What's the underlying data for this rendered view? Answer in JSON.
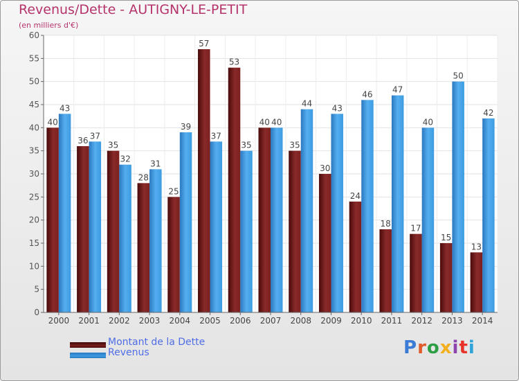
{
  "title": "Revenus/Dette - AUTIGNY-LE-PETIT",
  "subtitle": "(en milliers d'€)",
  "logo_text": "Proxiti",
  "logo_colors": [
    "#3a7bd5",
    "#e05a2a",
    "#2e9e44",
    "#f2b01e",
    "#8e44ad",
    "#e8332a",
    "#2fa3d9"
  ],
  "chart_data": {
    "type": "bar",
    "categories": [
      "2000",
      "2001",
      "2002",
      "2003",
      "2004",
      "2005",
      "2006",
      "2007",
      "2008",
      "2009",
      "2010",
      "2011",
      "2012",
      "2013",
      "2014"
    ],
    "series": [
      {
        "name": "Montant de la Dette",
        "color": "#7a1f1f",
        "values": [
          40,
          36,
          35,
          28,
          25,
          57,
          53,
          40,
          35,
          30,
          24,
          18,
          17,
          15,
          13
        ]
      },
      {
        "name": "Revenus",
        "color": "#3d9be0",
        "values": [
          43,
          37,
          32,
          31,
          39,
          37,
          35,
          40,
          44,
          43,
          46,
          47,
          40,
          50,
          42
        ]
      }
    ],
    "ylim": [
      0,
      60
    ],
    "yticks": [
      0,
      5,
      10,
      15,
      20,
      25,
      30,
      35,
      40,
      45,
      50,
      55,
      60
    ],
    "xlabel": "",
    "ylabel": "",
    "grid": true,
    "legend": "bottom-left"
  }
}
